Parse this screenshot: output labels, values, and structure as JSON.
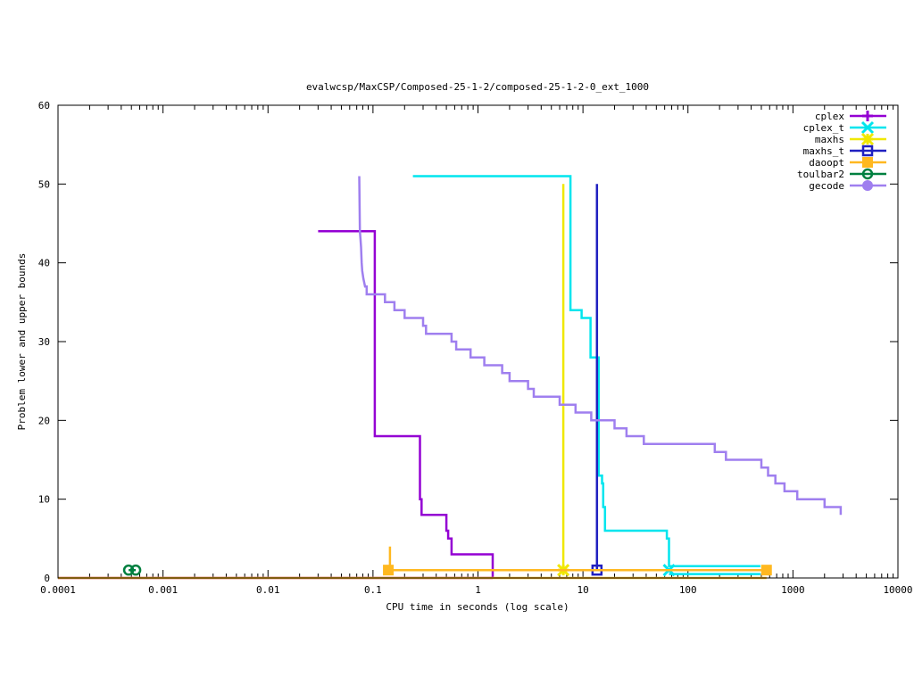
{
  "chart_data": {
    "type": "line",
    "title": "evalwcsp/MaxCSP/Composed-25-1-2/composed-25-1-2-0_ext_1000",
    "xlabel": "CPU time in seconds (log scale)",
    "ylabel": "Problem lower and upper bounds",
    "xscale": "log",
    "xlim": [
      0.0001,
      10000
    ],
    "ylim": [
      0,
      60
    ],
    "x_ticks": [
      {
        "value": 0.0001,
        "label": "0.0001"
      },
      {
        "value": 0.001,
        "label": "0.001"
      },
      {
        "value": 0.01,
        "label": "0.01"
      },
      {
        "value": 0.1,
        "label": "0.1"
      },
      {
        "value": 1,
        "label": "1"
      },
      {
        "value": 10,
        "label": "10"
      },
      {
        "value": 100,
        "label": "100"
      },
      {
        "value": 1000,
        "label": "1000"
      },
      {
        "value": 10000,
        "label": "10000"
      }
    ],
    "y_ticks": [
      {
        "value": 0,
        "label": "0"
      },
      {
        "value": 10,
        "label": "10"
      },
      {
        "value": 20,
        "label": "20"
      },
      {
        "value": 30,
        "label": "30"
      },
      {
        "value": 40,
        "label": "40"
      },
      {
        "value": 50,
        "label": "50"
      },
      {
        "value": 60,
        "label": "60"
      }
    ],
    "grid": false,
    "legend_position": "top-right",
    "series": [
      {
        "name": "cplex",
        "color": "#9400d3",
        "marker": "plus",
        "upper": [
          [
            0.03,
            44
          ],
          [
            0.104,
            44
          ],
          [
            0.104,
            18
          ],
          [
            0.28,
            18
          ],
          [
            0.28,
            10
          ],
          [
            0.29,
            10
          ],
          [
            0.29,
            8
          ],
          [
            0.5,
            8
          ],
          [
            0.5,
            6
          ],
          [
            0.52,
            6
          ],
          [
            0.52,
            5
          ],
          [
            0.56,
            5
          ],
          [
            0.56,
            3
          ],
          [
            1.38,
            3
          ],
          [
            1.38,
            0
          ]
        ],
        "lower": [
          [
            0.0001,
            0
          ],
          [
            1.38,
            0
          ]
        ],
        "markers": []
      },
      {
        "name": "cplex_t",
        "color": "#00e5ee",
        "marker": "cross",
        "upper": [
          [
            0.24,
            51
          ],
          [
            7.6,
            51
          ],
          [
            7.6,
            34
          ],
          [
            9.7,
            34
          ],
          [
            9.7,
            33
          ],
          [
            11.8,
            33
          ],
          [
            11.8,
            28
          ],
          [
            14.1,
            28
          ],
          [
            14.1,
            13
          ],
          [
            15.2,
            13
          ],
          [
            15.2,
            12
          ],
          [
            15.6,
            12
          ],
          [
            15.6,
            9
          ],
          [
            16.2,
            9
          ],
          [
            16.2,
            6
          ],
          [
            63,
            6
          ],
          [
            63,
            5
          ],
          [
            66,
            5
          ],
          [
            66,
            1.5
          ],
          [
            490,
            1.5
          ]
        ],
        "lower": [
          [
            66,
            0.5
          ],
          [
            490,
            0.5
          ]
        ],
        "markers": [
          [
            66,
            1
          ]
        ]
      },
      {
        "name": "maxhs",
        "color": "#f0e800",
        "marker": "star",
        "upper": [
          [
            6.5,
            50
          ],
          [
            6.5,
            1
          ]
        ],
        "lower": [
          [
            6.5,
            1
          ]
        ],
        "markers": [
          [
            6.5,
            1
          ]
        ]
      },
      {
        "name": "maxhs_t",
        "color": "#2020c0",
        "marker": "box",
        "upper": [
          [
            13.6,
            50
          ],
          [
            13.6,
            1
          ]
        ],
        "lower": [
          [
            13.6,
            1
          ]
        ],
        "markers": [
          [
            13.6,
            1
          ]
        ]
      },
      {
        "name": "daoopt",
        "color": "#ffb820",
        "marker": "filled-box",
        "upper": [
          [
            0.145,
            4
          ],
          [
            0.145,
            1
          ],
          [
            560,
            1
          ]
        ],
        "lower": [
          [
            0.0001,
            0
          ],
          [
            560,
            0
          ]
        ],
        "markers": [
          [
            0.14,
            1
          ],
          [
            560,
            1
          ]
        ]
      },
      {
        "name": "toulbar2",
        "color": "#008040",
        "marker": "circle",
        "upper": [
          [
            0.00047,
            1
          ],
          [
            0.00055,
            1
          ]
        ],
        "lower": [
          [
            0.00047,
            1
          ]
        ],
        "markers": [
          [
            0.00047,
            1
          ],
          [
            0.00055,
            1
          ]
        ]
      },
      {
        "name": "gecode",
        "color": "#9f7fef",
        "marker": "filled-circle",
        "upper": [
          [
            0.074,
            51
          ],
          [
            0.075,
            44
          ],
          [
            0.076,
            43
          ],
          [
            0.077,
            42
          ],
          [
            0.078,
            40
          ],
          [
            0.079,
            39
          ],
          [
            0.081,
            38
          ],
          [
            0.084,
            37
          ],
          [
            0.087,
            37
          ],
          [
            0.087,
            36
          ],
          [
            0.13,
            36
          ],
          [
            0.13,
            35
          ],
          [
            0.16,
            35
          ],
          [
            0.16,
            34
          ],
          [
            0.2,
            34
          ],
          [
            0.2,
            33
          ],
          [
            0.3,
            33
          ],
          [
            0.3,
            32
          ],
          [
            0.32,
            32
          ],
          [
            0.32,
            31
          ],
          [
            0.56,
            31
          ],
          [
            0.56,
            30
          ],
          [
            0.62,
            30
          ],
          [
            0.62,
            29
          ],
          [
            0.85,
            29
          ],
          [
            0.85,
            28
          ],
          [
            1.15,
            28
          ],
          [
            1.15,
            27
          ],
          [
            1.7,
            27
          ],
          [
            1.7,
            26
          ],
          [
            2.0,
            26
          ],
          [
            2.0,
            25
          ],
          [
            3.0,
            25
          ],
          [
            3.0,
            24
          ],
          [
            3.4,
            24
          ],
          [
            3.4,
            23
          ],
          [
            6.0,
            23
          ],
          [
            6.0,
            22
          ],
          [
            8.5,
            22
          ],
          [
            8.5,
            21
          ],
          [
            12.0,
            21
          ],
          [
            12.0,
            20
          ],
          [
            20.0,
            20
          ],
          [
            20.0,
            19
          ],
          [
            26.0,
            19
          ],
          [
            26.0,
            18
          ],
          [
            38.0,
            18
          ],
          [
            38.0,
            17
          ],
          [
            180.0,
            17
          ],
          [
            180.0,
            16
          ],
          [
            230.0,
            16
          ],
          [
            230.0,
            15
          ],
          [
            500.0,
            15
          ],
          [
            500.0,
            14
          ],
          [
            580.0,
            14
          ],
          [
            580.0,
            13
          ],
          [
            680.0,
            13
          ],
          [
            680.0,
            12
          ],
          [
            830.0,
            12
          ],
          [
            830.0,
            11
          ],
          [
            1100.0,
            11
          ],
          [
            1100.0,
            10
          ],
          [
            2000.0,
            10
          ],
          [
            2000.0,
            9
          ],
          [
            2850.0,
            9
          ],
          [
            2850.0,
            8
          ]
        ],
        "lower": [],
        "markers": []
      }
    ]
  }
}
